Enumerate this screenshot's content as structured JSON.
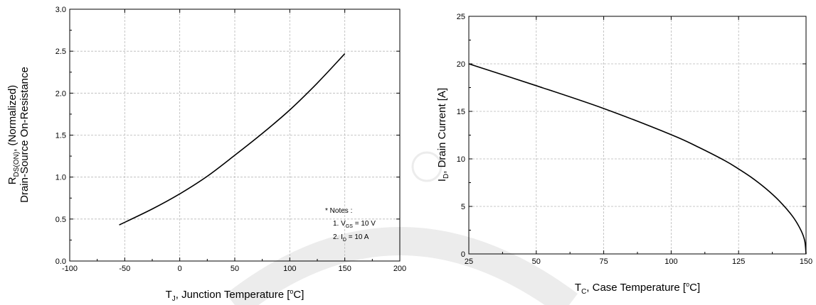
{
  "chart_data": [
    {
      "type": "line",
      "xlabel": {
        "main": "T",
        "sub": "J",
        "rest": ", Junction Temperature [",
        "sup": "o",
        "unit": "C]"
      },
      "ylabel": {
        "line1": {
          "main": "R",
          "sub": "DS(ON)",
          "rest": ", (Normalized)"
        },
        "line2": "Drain-Source On-Resistance"
      },
      "xlim": [
        -100,
        200
      ],
      "ylim": [
        0.0,
        3.0
      ],
      "xticks": [
        "-100",
        "-50",
        "0",
        "50",
        "100",
        "150",
        "200"
      ],
      "yticks": [
        "0.0",
        "0.5",
        "1.0",
        "1.5",
        "2.0",
        "2.5",
        "3.0"
      ],
      "grid": true,
      "notes": {
        "title": "* Notes :",
        "line1": {
          "prefix": "1. V",
          "sub": "GS",
          "rest": " = 10 V"
        },
        "line2": {
          "prefix": "2. I",
          "sub": "D",
          "rest": " = 10 A"
        }
      },
      "series": [
        {
          "x": [
            -55,
            -25,
            0,
            25,
            50,
            75,
            100,
            125,
            150
          ],
          "y": [
            0.43,
            0.62,
            0.8,
            1.01,
            1.26,
            1.52,
            1.8,
            2.12,
            2.47
          ]
        }
      ]
    },
    {
      "type": "line",
      "xlabel": {
        "main": "T",
        "sub": "C",
        "rest": ", Case Temperature [",
        "sup": "o",
        "unit": "C]"
      },
      "ylabel": {
        "main": "I",
        "sub": "D",
        "rest": ", Drain Current [A]"
      },
      "xlim": [
        25,
        150
      ],
      "ylim": [
        0,
        25
      ],
      "xticks": [
        "25",
        "50",
        "75",
        "100",
        "125",
        "150"
      ],
      "yticks": [
        "0",
        "5",
        "10",
        "15",
        "20",
        "25"
      ],
      "grid": true,
      "series": [
        {
          "x": [
            25,
            50,
            75,
            100,
            110,
            120,
            125,
            130,
            135,
            140,
            145,
            148,
            149.5,
            150
          ],
          "y": [
            20.0,
            17.7,
            15.3,
            12.55,
            11.25,
            9.8,
            8.94,
            8.0,
            6.9,
            5.6,
            3.96,
            2.55,
            1.4,
            0
          ]
        }
      ]
    }
  ]
}
